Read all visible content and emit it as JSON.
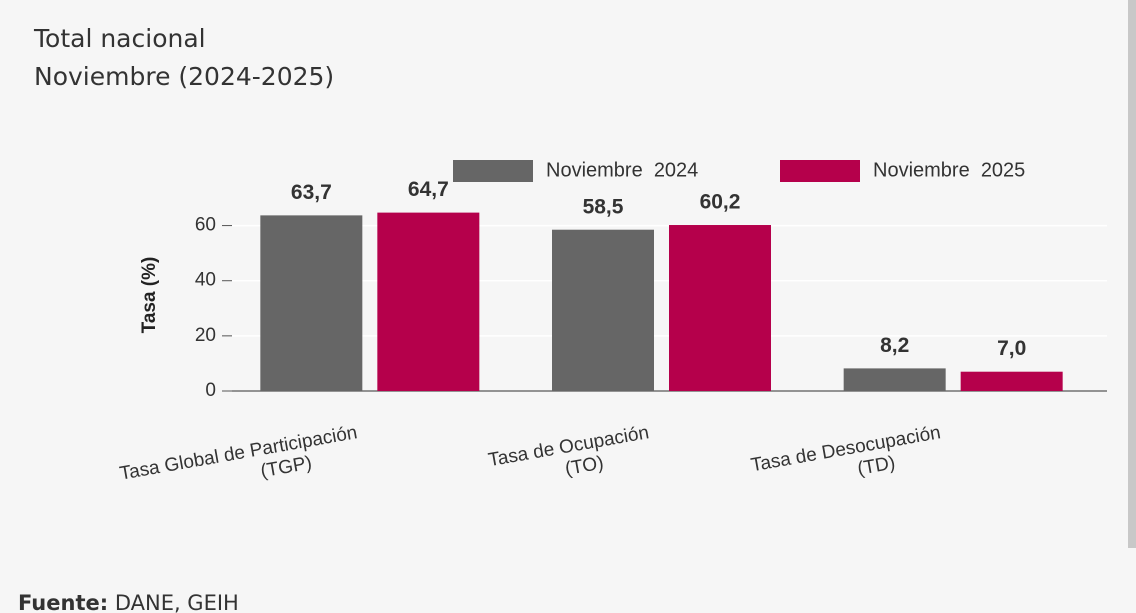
{
  "chart_data": {
    "type": "bar",
    "title": [
      "Total nacional",
      "Noviembre (2024-2025)"
    ],
    "y_label": "Tasa (%)",
    "categories": [
      [
        "Tasa Global de Participación",
        "(TGP)"
      ],
      [
        "Tasa de Ocupación",
        "(TO)"
      ],
      [
        "Tasa de Desocupación",
        "(TD)"
      ]
    ],
    "series": [
      {
        "name": "Noviembre  2024",
        "color": "#666666",
        "values": [
          63.7,
          58.5,
          8.2
        ],
        "value_labels": [
          "63,7",
          "58,5",
          "8,2"
        ]
      },
      {
        "name": "Noviembre  2025",
        "color": "#b5004b",
        "values": [
          64.7,
          60.2,
          7.0
        ],
        "value_labels": [
          "64,7",
          "60,2",
          "7,0"
        ]
      }
    ],
    "ylim": [
      0,
      70
    ],
    "yticks": [
      0,
      20,
      40,
      60
    ],
    "grid": true,
    "legend": "top-right"
  },
  "source": {
    "label": "Fuente:",
    "text": "DANE, GEIH"
  }
}
